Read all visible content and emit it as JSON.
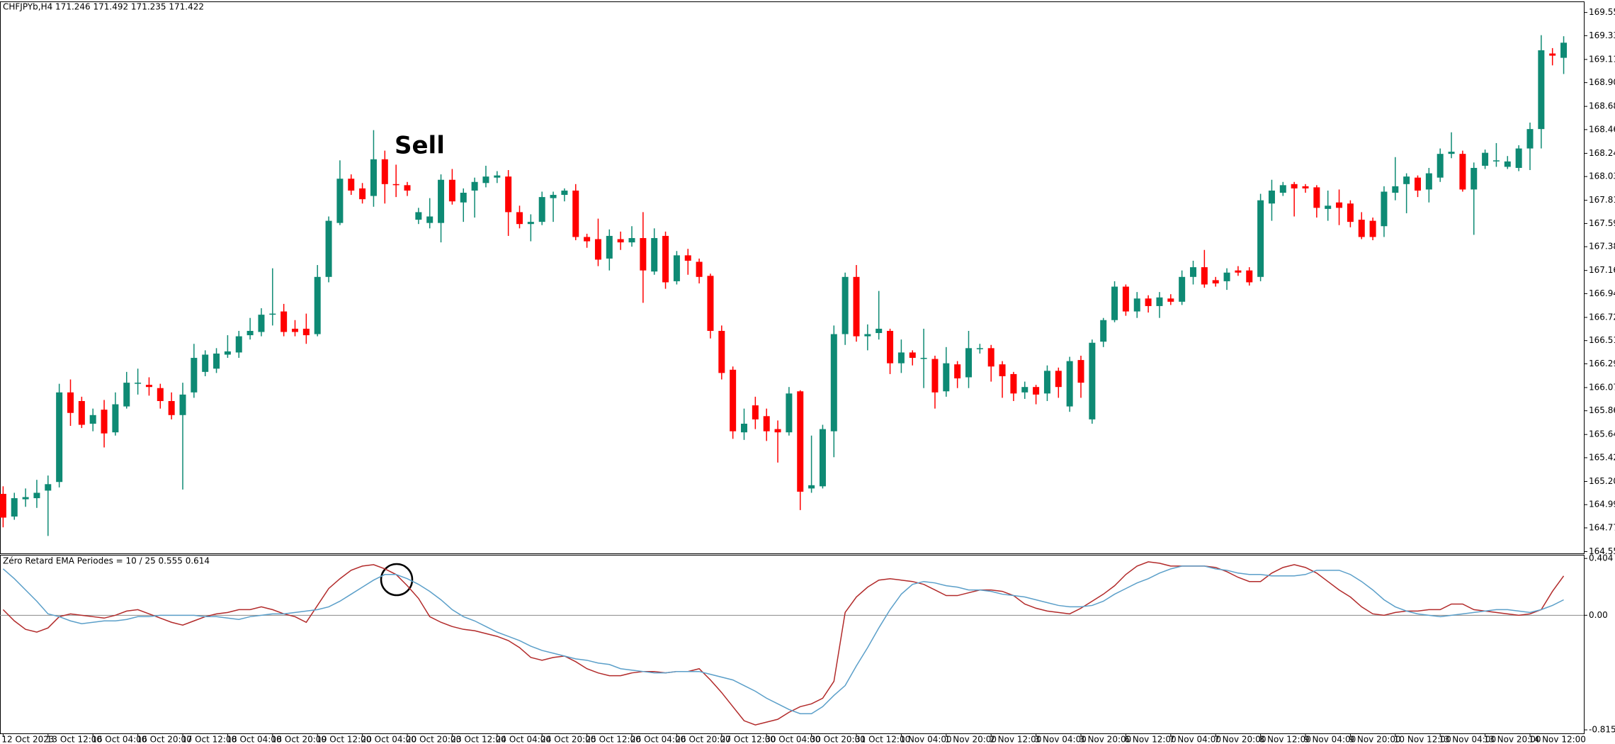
{
  "chart_data": [
    {
      "type": "candlestick",
      "title": "CHFJPYb,H4  171.246 171.492 171.235 171.422",
      "annotation": "Sell",
      "up_color": "#0e8a74",
      "down_color": "#ff0000",
      "categories": [
        "12 Oct 2023",
        null,
        null,
        null,
        "13 Oct 12:00",
        null,
        null,
        null,
        "16 Oct 04:00",
        null,
        null,
        null,
        "16 Oct 20:00",
        null,
        null,
        null,
        "17 Oct 12:00",
        null,
        null,
        null,
        "18 Oct 04:00",
        null,
        null,
        null,
        "18 Oct 20:00",
        null,
        null,
        null,
        "19 Oct 12:00",
        null,
        null,
        null,
        "20 Oct 04:00",
        null,
        null,
        null,
        "20 Oct 20:00",
        null,
        null,
        null,
        "23 Oct 12:00",
        null,
        null,
        null,
        "24 Oct 04:00",
        null,
        null,
        null,
        "24 Oct 20:00",
        null,
        null,
        null,
        "25 Oct 12:00",
        null,
        null,
        null,
        "26 Oct 04:00",
        null,
        null,
        null,
        "26 Oct 20:00",
        null,
        null,
        null,
        "27 Oct 12:00",
        null,
        null,
        null,
        "30 Oct 04:00",
        null,
        null,
        null,
        "30 Oct 20:00",
        null,
        null,
        null,
        "31 Oct 12:00",
        null,
        null,
        null,
        "1 Nov 04:00",
        null,
        null,
        null,
        "1 Nov 20:00",
        null,
        null,
        null,
        "2 Nov 12:00",
        null,
        null,
        null,
        "3 Nov 04:00",
        null,
        null,
        null,
        "3 Nov 20:00",
        null,
        null,
        null,
        "6 Nov 12:00",
        null,
        null,
        null,
        "7 Nov 04:00",
        null,
        null,
        null,
        "7 Nov 20:00",
        null,
        null,
        null,
        "8 Nov 12:00",
        null,
        null,
        null,
        "9 Nov 04:00",
        null,
        null,
        null,
        "9 Nov 20:00",
        null,
        null,
        null,
        "10 Nov 12:00",
        null,
        null,
        null,
        "13 Nov 04:00",
        null,
        null,
        null,
        "13 Nov 20:00",
        null,
        null,
        null,
        "14 Nov 12:00",
        null,
        null,
        null
      ],
      "open": [
        165.09,
        164.88,
        165.04,
        165.05,
        165.12,
        165.2,
        166.03,
        165.95,
        165.74,
        165.87,
        165.66,
        165.9,
        166.11,
        166.1,
        166.07,
        165.95,
        165.82,
        166.03,
        166.22,
        166.25,
        166.38,
        166.4,
        166.56,
        166.59,
        166.75,
        166.78,
        166.62,
        166.62,
        166.57,
        167.1,
        167.6,
        168.01,
        167.92,
        167.85,
        168.19,
        167.96,
        167.95,
        167.63,
        167.6,
        167.6,
        168.0,
        167.79,
        167.9,
        167.97,
        168.02,
        168.03,
        167.7,
        167.59,
        167.61,
        167.83,
        167.86,
        167.9,
        167.47,
        167.45,
        167.27,
        167.45,
        167.42,
        167.46,
        167.15,
        167.48,
        167.06,
        167.3,
        167.24,
        167.11,
        166.6,
        166.24,
        165.66,
        165.91,
        165.81,
        165.69,
        165.66,
        166.04,
        165.14,
        165.16,
        165.67,
        166.57,
        167.1,
        166.55,
        166.58,
        166.6,
        166.3,
        166.4,
        166.34,
        166.34,
        166.04,
        166.29,
        166.17,
        166.43,
        166.44,
        166.29,
        166.2,
        166.03,
        166.08,
        166.02,
        166.23,
        165.9,
        166.33,
        165.78,
        166.5,
        166.7,
        167.01,
        166.78,
        166.9,
        166.83,
        166.9,
        166.87,
        167.1,
        167.19,
        167.07,
        167.06,
        167.16,
        167.16,
        167.1,
        167.78,
        167.88,
        167.96,
        167.94,
        167.93,
        167.73,
        167.79,
        167.78,
        167.63,
        167.62,
        167.57,
        167.88,
        167.96,
        168.02,
        167.91,
        168.02,
        168.24,
        168.24,
        167.91,
        168.13,
        168.18,
        168.12,
        168.11,
        168.29,
        168.47,
        169.17,
        169.13
      ],
      "high": [
        165.16,
        165.1,
        165.14,
        165.22,
        165.26,
        166.11,
        166.15,
        165.99,
        165.88,
        165.96,
        166.03,
        166.22,
        166.25,
        166.17,
        166.11,
        166.03,
        166.12,
        166.48,
        166.42,
        166.44,
        166.56,
        166.6,
        166.72,
        166.81,
        167.18,
        166.85,
        166.7,
        166.76,
        167.21,
        167.66,
        168.18,
        168.05,
        167.97,
        168.46,
        168.27,
        168.14,
        167.98,
        167.74,
        167.83,
        168.05,
        168.1,
        167.92,
        168.02,
        168.13,
        168.08,
        168.09,
        167.76,
        167.68,
        167.89,
        167.89,
        167.92,
        167.96,
        167.5,
        167.64,
        167.54,
        167.52,
        167.57,
        167.7,
        167.55,
        167.52,
        167.34,
        167.36,
        167.27,
        167.13,
        166.65,
        166.27,
        165.88,
        165.99,
        165.88,
        165.77,
        166.08,
        166.05,
        165.63,
        165.73,
        166.65,
        167.14,
        167.21,
        166.66,
        166.97,
        166.62,
        166.52,
        166.42,
        166.62,
        166.37,
        166.45,
        166.32,
        166.6,
        166.48,
        166.47,
        166.32,
        166.22,
        166.13,
        166.1,
        166.28,
        166.26,
        166.36,
        166.37,
        166.52,
        166.72,
        167.06,
        167.03,
        166.96,
        166.93,
        166.96,
        166.94,
        167.16,
        167.25,
        167.35,
        167.1,
        167.18,
        167.2,
        167.19,
        167.87,
        168.0,
        167.98,
        167.98,
        167.96,
        167.95,
        167.9,
        167.91,
        167.81,
        167.7,
        167.65,
        167.94,
        168.21,
        168.06,
        168.04,
        168.11,
        168.29,
        168.44,
        168.27,
        168.16,
        168.28,
        168.34,
        168.22,
        168.32,
        168.53,
        169.34,
        169.22,
        169.33
      ],
      "low": [
        164.78,
        164.85,
        164.97,
        164.96,
        164.7,
        165.15,
        165.72,
        165.7,
        165.67,
        165.52,
        165.63,
        165.88,
        166.01,
        166.0,
        165.88,
        165.78,
        165.13,
        165.98,
        166.18,
        166.21,
        166.35,
        166.35,
        166.52,
        166.55,
        166.65,
        166.55,
        166.55,
        166.48,
        166.55,
        167.05,
        167.58,
        167.86,
        167.78,
        167.75,
        167.78,
        167.84,
        167.85,
        167.59,
        167.55,
        167.42,
        167.77,
        167.61,
        167.65,
        167.93,
        167.97,
        167.48,
        167.55,
        167.43,
        167.58,
        167.61,
        167.8,
        167.44,
        167.37,
        167.2,
        167.16,
        167.35,
        167.38,
        166.86,
        167.12,
        166.99,
        167.03,
        167.12,
        167.04,
        166.53,
        166.15,
        165.6,
        165.59,
        165.69,
        165.58,
        165.38,
        165.63,
        164.94,
        165.1,
        165.14,
        165.43,
        166.47,
        166.5,
        166.42,
        166.52,
        166.2,
        166.21,
        166.28,
        166.07,
        165.88,
        165.99,
        166.07,
        166.07,
        166.39,
        166.13,
        165.98,
        165.95,
        165.97,
        165.92,
        165.95,
        165.98,
        165.85,
        165.98,
        165.74,
        166.45,
        166.68,
        166.74,
        166.72,
        166.77,
        166.72,
        166.84,
        166.84,
        167.03,
        167.0,
        167.01,
        166.98,
        167.11,
        167.02,
        167.06,
        167.62,
        167.85,
        167.66,
        167.88,
        167.65,
        167.62,
        167.58,
        167.56,
        167.45,
        167.44,
        167.47,
        167.81,
        167.69,
        167.84,
        167.79,
        167.98,
        168.2,
        167.89,
        167.49,
        168.1,
        168.12,
        168.1,
        168.08,
        168.09,
        168.29,
        169.06,
        168.98
      ],
      "close": [
        164.87,
        165.05,
        165.06,
        165.1,
        165.18,
        166.03,
        165.84,
        165.73,
        165.82,
        165.65,
        165.92,
        166.12,
        166.12,
        166.08,
        165.95,
        165.82,
        166.01,
        166.35,
        166.38,
        166.39,
        166.41,
        166.55,
        166.6,
        166.75,
        166.76,
        166.59,
        166.59,
        166.56,
        167.1,
        167.62,
        168.01,
        167.9,
        167.82,
        168.19,
        167.96,
        167.95,
        167.9,
        167.7,
        167.66,
        168.0,
        167.8,
        167.88,
        167.98,
        168.03,
        168.04,
        167.7,
        167.59,
        167.61,
        167.84,
        167.86,
        167.9,
        167.47,
        167.43,
        167.26,
        167.48,
        167.42,
        167.46,
        167.16,
        167.46,
        167.05,
        167.3,
        167.25,
        167.1,
        166.6,
        166.21,
        165.67,
        165.74,
        165.78,
        165.67,
        165.66,
        166.02,
        165.11,
        165.17,
        165.69,
        166.57,
        167.1,
        166.55,
        166.57,
        166.62,
        166.3,
        166.4,
        166.35,
        166.35,
        166.03,
        166.3,
        166.16,
        166.44,
        166.44,
        166.27,
        166.18,
        166.02,
        166.08,
        166.01,
        166.23,
        166.08,
        166.32,
        166.12,
        166.49,
        166.7,
        167.01,
        166.78,
        166.9,
        166.83,
        166.91,
        166.87,
        167.1,
        167.19,
        167.03,
        167.04,
        167.14,
        167.14,
        167.05,
        167.81,
        167.9,
        167.95,
        167.92,
        167.92,
        167.74,
        167.76,
        167.74,
        167.61,
        167.47,
        167.47,
        167.89,
        167.94,
        168.03,
        167.9,
        168.06,
        168.24,
        168.26,
        167.91,
        168.11,
        168.25,
        168.18,
        168.17,
        168.29,
        168.47,
        169.2,
        169.15,
        169.27
      ],
      "ylim": [
        164.545,
        169.646
      ],
      "yticks": [
        {
          "value": 169.55,
          "label": "169.550"
        },
        169.335,
        169.115,
        {
          "value": 168.9,
          "label": "168.900"
        },
        {
          "value": 168.68,
          "label": "168.680"
        },
        168.465,
        168.245,
        {
          "value": 168.03,
          "label": "168.030"
        },
        {
          "value": 167.81,
          "label": "167.810"
        },
        167.595,
        {
          "value": 167.38,
          "label": "167.380"
        },
        {
          "value": 167.16,
          "label": "167.160"
        },
        166.945,
        166.725,
        {
          "value": 166.51,
          "label": "166.510"
        },
        166.295,
        166.075,
        {
          "value": 165.86,
          "label": "165.860"
        },
        {
          "value": 165.64,
          "label": "165.640"
        },
        165.425,
        165.205,
        {
          "value": 164.99,
          "label": "164.990"
        },
        164.775,
        164.555
      ]
    },
    {
      "type": "line",
      "title": "Zéro Retard EMA Periodes = 10 / 25  0.555 0.614",
      "series": [
        {
          "color": "#b22a2a",
          "values": [
            0.04,
            -0.04,
            -0.1,
            -0.12,
            -0.09,
            -0.01,
            0.01,
            0,
            -0.01,
            -0.02,
            0,
            0.03,
            0.04,
            0.01,
            -0.02,
            -0.05,
            -0.07,
            -0.04,
            -0.01,
            0.01,
            0.02,
            0.04,
            0.04,
            0.06,
            0.04,
            0.01,
            -0.01,
            -0.05,
            0.07,
            0.19,
            0.26,
            0.32,
            0.35,
            0.36,
            0.33,
            0.29,
            0.21,
            0.12,
            -0.01,
            -0.05,
            -0.08,
            -0.1,
            -0.11,
            -0.13,
            -0.15,
            -0.18,
            -0.23,
            -0.3,
            -0.32,
            -0.3,
            -0.29,
            -0.33,
            -0.38,
            -0.41,
            -0.43,
            -0.43,
            -0.41,
            -0.4,
            -0.4,
            -0.41,
            -0.4,
            -0.4,
            -0.38,
            -0.46,
            -0.55,
            -0.65,
            -0.75,
            -0.78,
            -0.76,
            -0.74,
            -0.69,
            -0.65,
            -0.63,
            -0.59,
            -0.47,
            0.02,
            0.13,
            0.2,
            0.25,
            0.26,
            0.25,
            0.24,
            0.22,
            0.18,
            0.14,
            0.14,
            0.16,
            0.18,
            0.18,
            0.17,
            0.14,
            0.08,
            0.05,
            0.03,
            0.02,
            0.01,
            0.05,
            0.1,
            0.15,
            0.21,
            0.29,
            0.35,
            0.38,
            0.37,
            0.35,
            0.35,
            0.35,
            0.35,
            0.34,
            0.31,
            0.27,
            0.24,
            0.24,
            0.3,
            0.34,
            0.36,
            0.34,
            0.3,
            0.24,
            0.18,
            0.13,
            0.06,
            0.01,
            0,
            0.02,
            0.03,
            0.03,
            0.04,
            0.04,
            0.08,
            0.08,
            0.04,
            0.03,
            0.02,
            0.01,
            0,
            0.01,
            0.04,
            0.17,
            0.28
          ]
        },
        {
          "color": "#5b9fc9",
          "values": [
            0.33,
            0.26,
            0.18,
            0.1,
            0.01,
            -0.01,
            -0.04,
            -0.06,
            -0.05,
            -0.04,
            -0.04,
            -0.03,
            -0.01,
            -0.01,
            0,
            0,
            0,
            0,
            -0.01,
            -0.01,
            -0.02,
            -0.03,
            -0.01,
            0,
            0.01,
            0.01,
            0.02,
            0.03,
            0.04,
            0.06,
            0.1,
            0.15,
            0.2,
            0.25,
            0.29,
            0.29,
            0.26,
            0.22,
            0.17,
            0.11,
            0.04,
            -0.01,
            -0.04,
            -0.08,
            -0.12,
            -0.15,
            -0.18,
            -0.22,
            -0.25,
            -0.27,
            -0.29,
            -0.31,
            -0.32,
            -0.34,
            -0.35,
            -0.38,
            -0.39,
            -0.4,
            -0.41,
            -0.41,
            -0.4,
            -0.4,
            -0.4,
            -0.42,
            -0.44,
            -0.46,
            -0.5,
            -0.54,
            -0.59,
            -0.63,
            -0.67,
            -0.7,
            -0.7,
            -0.65,
            -0.57,
            -0.5,
            -0.36,
            -0.23,
            -0.09,
            0.04,
            0.15,
            0.22,
            0.24,
            0.23,
            0.21,
            0.2,
            0.18,
            0.18,
            0.17,
            0.15,
            0.14,
            0.13,
            0.11,
            0.09,
            0.07,
            0.06,
            0.06,
            0.07,
            0.1,
            0.15,
            0.19,
            0.23,
            0.26,
            0.3,
            0.33,
            0.35,
            0.35,
            0.35,
            0.33,
            0.32,
            0.3,
            0.29,
            0.29,
            0.28,
            0.28,
            0.28,
            0.29,
            0.32,
            0.32,
            0.32,
            0.29,
            0.24,
            0.18,
            0.11,
            0.06,
            0.03,
            0.01,
            0,
            -0.01,
            0,
            0.01,
            0.02,
            0.03,
            0.04,
            0.04,
            0.03,
            0.02,
            0.04,
            0.07,
            0.11
          ]
        }
      ],
      "ylim": [
        -0.84,
        0.43
      ],
      "yticks": [
        0.404,
        {
          "value": 0,
          "label": "0.00"
        },
        -0.815
      ]
    }
  ]
}
